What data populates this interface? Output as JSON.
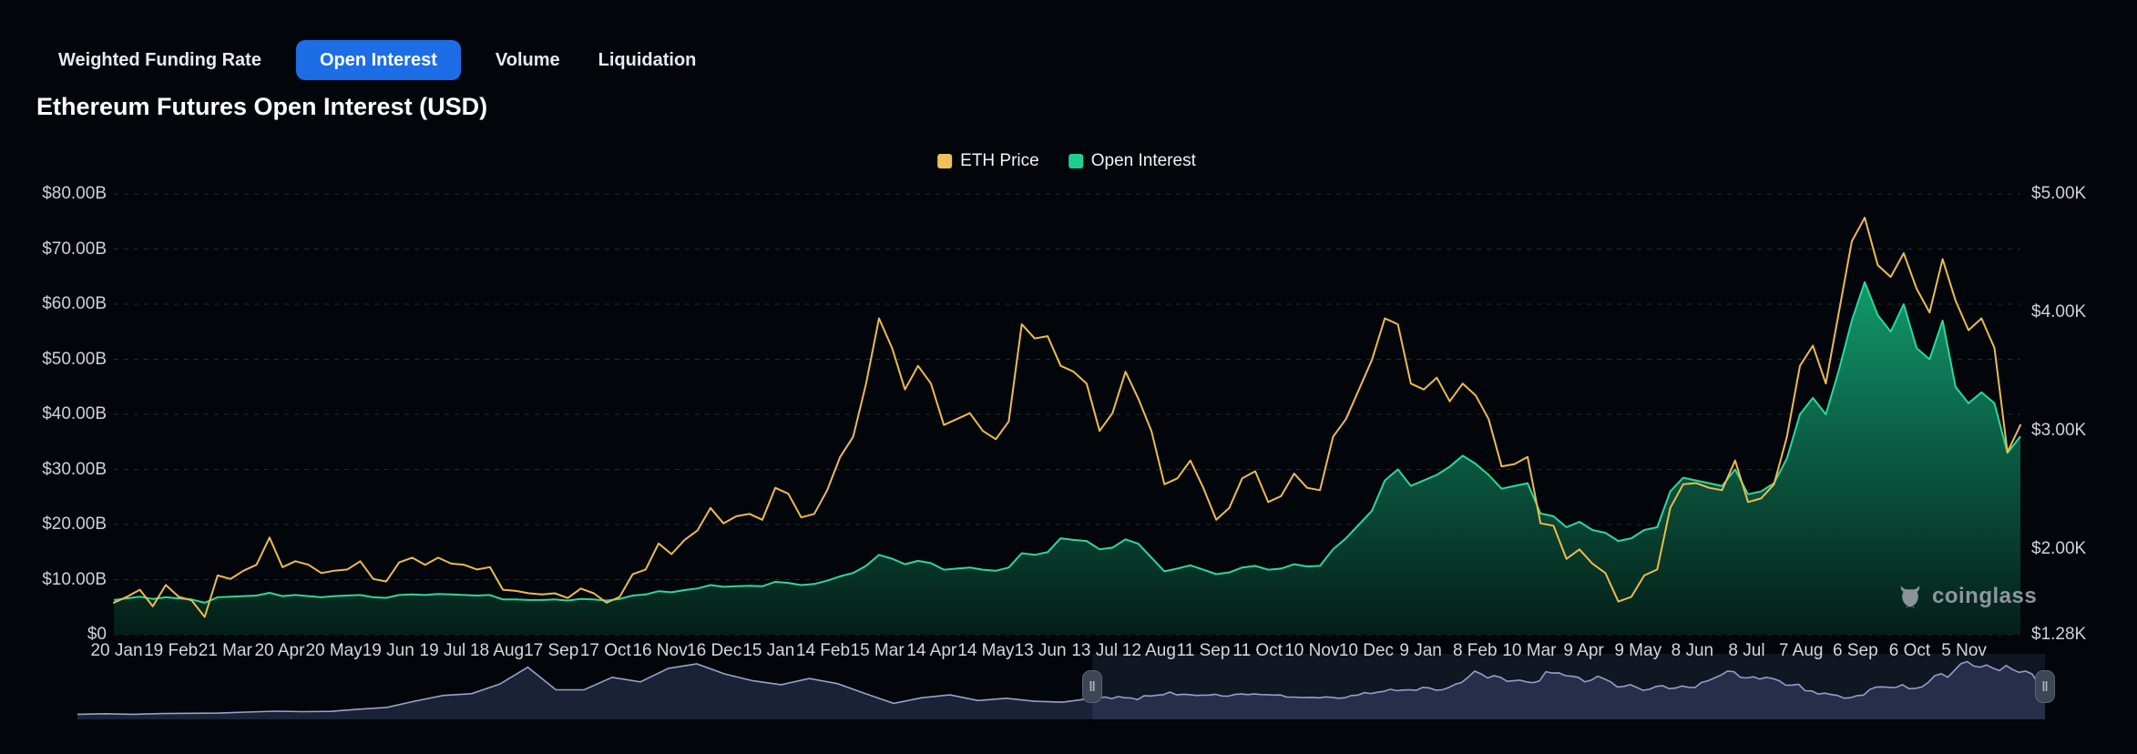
{
  "tabs": {
    "items": [
      {
        "label": "Weighted Funding Rate",
        "selected": false
      },
      {
        "label": "Open Interest",
        "selected": true
      },
      {
        "label": "Volume",
        "selected": false
      },
      {
        "label": "Liquidation",
        "selected": false
      }
    ]
  },
  "title": "Ethereum Futures Open Interest (USD)",
  "legend": [
    {
      "label": "ETH Price",
      "color": "#efc15c"
    },
    {
      "label": "Open Interest",
      "color": "#1fcf8e"
    }
  ],
  "watermark": {
    "label": "coinglass"
  },
  "colors": {
    "background": "#02050a",
    "selected_tab": "#1c6de6",
    "price_line": "#ecbb4f",
    "oi_line": "#2fd69b",
    "oi_fill_top": "#12a271",
    "oi_fill_mid": "#0b5f44",
    "oi_fill_bottom": "#041f18",
    "gridline": "#262b33",
    "navigator_line": "#97a3cc",
    "navigator_fill": "rgba(86,100,160,0.30)",
    "navigator_selected_bg": "rgba(124,140,205,0.13)"
  },
  "chart_data": {
    "type": "line",
    "title": "Ethereum Futures Open Interest (USD)",
    "grid": "horizontal-dashed",
    "legend_position": "top-center",
    "x_tick_labels": [
      "20 Jan",
      "19 Feb",
      "21 Mar",
      "20 Apr",
      "20 May",
      "19 Jun",
      "19 Jul",
      "18 Aug",
      "17 Sep",
      "17 Oct",
      "16 Nov",
      "16 Dec",
      "15 Jan",
      "14 Feb",
      "15 Mar",
      "14 Apr",
      "14 May",
      "13 Jun",
      "13 Jul",
      "12 Aug",
      "11 Sep",
      "11 Oct",
      "10 Nov",
      "10 Dec",
      "9 Jan",
      "8 Feb",
      "10 Mar",
      "9 Apr",
      "9 May",
      "8 Jun",
      "8 Jul",
      "7 Aug",
      "6 Sep",
      "6 Oct",
      "5 Nov"
    ],
    "left_axis": {
      "labels": [
        "$80.00B",
        "$70.00B",
        "$60.00B",
        "$50.00B",
        "$40.00B",
        "$30.00B",
        "$20.00B",
        "$10.00B",
        "$0"
      ],
      "values_b": [
        80,
        70,
        60,
        50,
        40,
        30,
        20,
        10,
        0
      ],
      "range_b": [
        0,
        80
      ]
    },
    "right_axis": {
      "labels": [
        "$5.00K",
        "$4.00K",
        "$3.00K",
        "$2.00K",
        "$1.28K"
      ],
      "values_k": [
        5.0,
        4.0,
        3.0,
        2.0,
        1.28
      ],
      "range_k": [
        1.28,
        5.0
      ]
    },
    "series": [
      {
        "name": "ETH Price",
        "type": "line",
        "axis": "right",
        "unit": "K USD",
        "color": "#ecbb4f",
        "values": [
          1.55,
          1.6,
          1.66,
          1.52,
          1.7,
          1.6,
          1.57,
          1.43,
          1.78,
          1.75,
          1.82,
          1.87,
          2.1,
          1.85,
          1.9,
          1.87,
          1.8,
          1.82,
          1.83,
          1.9,
          1.75,
          1.73,
          1.89,
          1.93,
          1.87,
          1.93,
          1.88,
          1.87,
          1.83,
          1.85,
          1.66,
          1.65,
          1.63,
          1.62,
          1.63,
          1.59,
          1.67,
          1.63,
          1.55,
          1.6,
          1.79,
          1.83,
          2.05,
          1.96,
          2.08,
          2.16,
          2.35,
          2.22,
          2.28,
          2.3,
          2.25,
          2.52,
          2.47,
          2.27,
          2.3,
          2.5,
          2.78,
          2.95,
          3.4,
          3.95,
          3.7,
          3.35,
          3.55,
          3.4,
          3.05,
          3.1,
          3.15,
          3.0,
          2.93,
          3.08,
          3.9,
          3.78,
          3.8,
          3.55,
          3.5,
          3.4,
          3.0,
          3.15,
          3.5,
          3.27,
          3.0,
          2.55,
          2.6,
          2.75,
          2.52,
          2.25,
          2.35,
          2.6,
          2.66,
          2.4,
          2.45,
          2.64,
          2.52,
          2.5,
          2.95,
          3.1,
          3.35,
          3.6,
          3.95,
          3.9,
          3.4,
          3.35,
          3.45,
          3.25,
          3.4,
          3.3,
          3.1,
          2.7,
          2.72,
          2.78,
          2.22,
          2.2,
          1.92,
          2.0,
          1.88,
          1.8,
          1.56,
          1.6,
          1.78,
          1.83,
          2.35,
          2.55,
          2.56,
          2.52,
          2.5,
          2.75,
          2.4,
          2.43,
          2.55,
          2.95,
          3.55,
          3.72,
          3.4,
          4.0,
          4.6,
          4.8,
          4.4,
          4.3,
          4.5,
          4.2,
          4.0,
          4.45,
          4.1,
          3.85,
          3.95,
          3.7,
          2.82,
          3.05
        ]
      },
      {
        "name": "Open Interest",
        "type": "area",
        "axis": "left",
        "unit": "B USD",
        "color": "#1fcf8e",
        "values": [
          6.3,
          6.6,
          6.9,
          6.5,
          6.8,
          6.6,
          6.4,
          5.8,
          6.8,
          6.9,
          7.0,
          7.1,
          7.6,
          7.0,
          7.2,
          7.0,
          6.8,
          7.0,
          7.1,
          7.2,
          6.8,
          6.7,
          7.2,
          7.3,
          7.2,
          7.4,
          7.3,
          7.2,
          7.1,
          7.2,
          6.4,
          6.4,
          6.3,
          6.3,
          6.4,
          6.2,
          6.5,
          6.4,
          6.2,
          6.5,
          7.1,
          7.3,
          7.9,
          7.7,
          8.1,
          8.4,
          9.0,
          8.7,
          8.8,
          8.9,
          8.8,
          9.6,
          9.4,
          9.0,
          9.2,
          9.8,
          10.6,
          11.2,
          12.5,
          14.5,
          13.8,
          12.8,
          13.4,
          13.0,
          11.8,
          12.0,
          12.2,
          11.8,
          11.6,
          12.2,
          14.8,
          14.5,
          15.0,
          17.5,
          17.2,
          17.0,
          15.5,
          15.8,
          17.3,
          16.5,
          14.0,
          11.5,
          12.0,
          12.6,
          11.8,
          11.0,
          11.3,
          12.2,
          12.5,
          11.8,
          12.0,
          12.8,
          12.4,
          12.5,
          15.5,
          17.5,
          20.0,
          22.5,
          28.0,
          30.0,
          27.0,
          28.0,
          29.0,
          30.5,
          32.5,
          31.0,
          29.0,
          26.5,
          27.0,
          27.5,
          22.0,
          21.5,
          19.5,
          20.5,
          19.0,
          18.5,
          17.0,
          17.5,
          19.0,
          19.5,
          26.0,
          28.5,
          28.0,
          27.5,
          27.0,
          30.0,
          25.5,
          26.0,
          27.5,
          32.0,
          40.0,
          43.0,
          40.0,
          48.0,
          57.0,
          64.0,
          58.0,
          55.0,
          60.0,
          52.0,
          50.0,
          57.0,
          45.0,
          42.0,
          44.0,
          42.0,
          33.0,
          36.0
        ]
      }
    ]
  },
  "navigator": {
    "description": "mini ETH price history with selected range",
    "history_monthly_k": [
      0.13,
      0.18,
      0.13,
      0.19,
      0.22,
      0.23,
      0.32,
      0.4,
      0.36,
      0.39,
      0.58,
      0.74,
      1.3,
      1.8,
      1.95,
      2.8,
      4.3,
      2.3,
      2.3,
      3.4,
      3.0,
      4.2,
      4.6,
      3.7,
      3.1,
      2.75,
      3.3,
      2.85,
      1.95,
      1.1,
      1.6,
      1.85,
      1.35,
      1.55,
      1.28,
      1.2
    ],
    "handle_glyph": "‖"
  }
}
